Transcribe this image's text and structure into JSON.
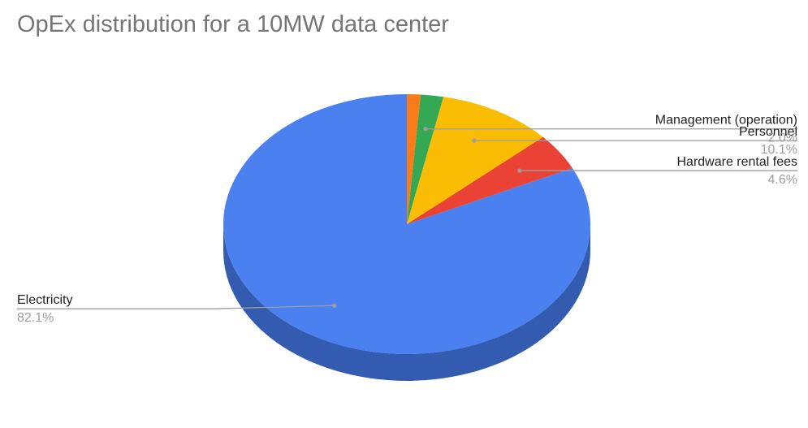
{
  "title": "OpEx distribution for a 10MW data center",
  "chart_data": {
    "type": "pie",
    "title": "OpEx distribution for a 10MW data center",
    "style": "3d",
    "slices": [
      {
        "label": "Electricity",
        "value": 82.1,
        "display": "82.1%",
        "color": "#4a80f0",
        "side_color": "#335bb0",
        "labeled": true
      },
      {
        "label": "Hardware rental fees",
        "value": 4.6,
        "display": "4.6%",
        "color": "#ea4335",
        "side_color": "#a72f25",
        "labeled": true
      },
      {
        "label": "Personnel",
        "value": 10.1,
        "display": "10.1%",
        "color": "#fbbc04",
        "side_color": "#b38603",
        "labeled": true
      },
      {
        "label": "Management (operation)",
        "value": 2.0,
        "display": "2.0%",
        "color": "#34a853",
        "side_color": "#24763a",
        "labeled": true
      },
      {
        "label": "",
        "value": 1.2,
        "display": "",
        "color": "#fa7b17",
        "side_color": "#b05610",
        "labeled": false
      }
    ]
  }
}
